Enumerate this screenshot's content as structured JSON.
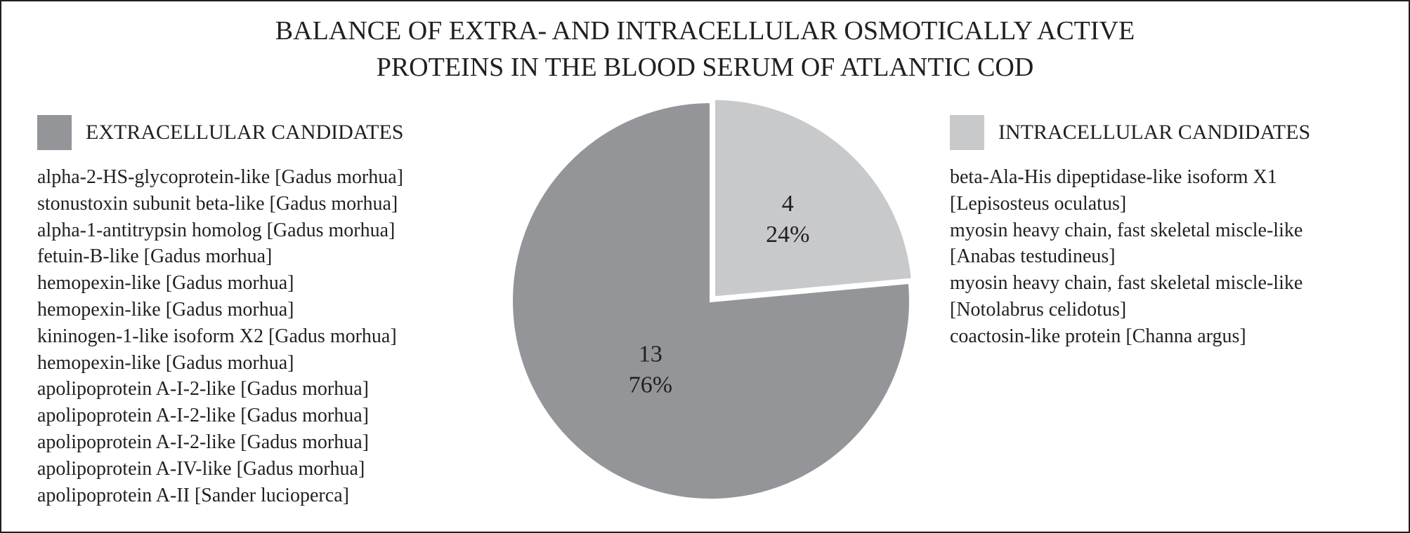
{
  "chart_data": {
    "type": "pie",
    "title": [
      "BALANCE OF EXTRA- AND INTRACELLULAR OSMOTICALLY ACTIVE",
      "PROTEINS IN THE BLOOD SERUM OF ATLANTIC COD"
    ],
    "slices": [
      {
        "name": "INTRACELLULAR CANDIDATES",
        "value": 4,
        "percent_label": "24%",
        "count_label": "4",
        "color": "#c8c9cb"
      },
      {
        "name": "EXTRACELLULAR CANDIDATES",
        "value": 13,
        "percent_label": "76%",
        "count_label": "13",
        "color": "#939598"
      }
    ]
  },
  "extracellular": {
    "label": "EXTRACELLULAR CANDIDATES",
    "items": [
      "alpha-2-HS-glycoprotein-like [Gadus morhua]",
      "stonustoxin subunit beta-like [Gadus morhua]",
      "alpha-1-antitrypsin homolog [Gadus morhua]",
      "fetuin-B-like [Gadus morhua]",
      "hemopexin-like [Gadus morhua]",
      "hemopexin-like [Gadus morhua]",
      "kininogen-1-like isoform X2 [Gadus morhua]",
      "hemopexin-like [Gadus morhua]",
      "apolipoprotein A-I-2-like [Gadus morhua]",
      "apolipoprotein A-I-2-like [Gadus morhua]",
      "apolipoprotein A-I-2-like [Gadus morhua]",
      "apolipoprotein A-IV-like [Gadus morhua]",
      "apolipoprotein A-II [Sander lucioperca]"
    ]
  },
  "intracellular": {
    "label": "INTRACELLULAR CANDIDATES",
    "items": [
      "beta-Ala-His dipeptidase-like isoform X1",
      "[Lepisosteus oculatus]",
      "myosin heavy chain, fast skeletal miscle-like",
      "[Anabas testudineus]",
      "myosin heavy chain, fast skeletal miscle-like",
      "[Notolabrus celidotus]",
      "coactosin-like protein [Channa argus]"
    ]
  }
}
